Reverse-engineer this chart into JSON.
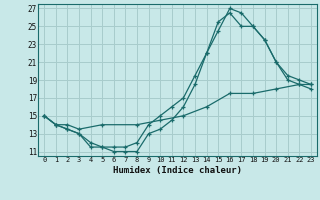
{
  "xlabel": "Humidex (Indice chaleur)",
  "xlim": [
    -0.5,
    23.5
  ],
  "ylim": [
    10.5,
    27.5
  ],
  "xticks": [
    0,
    1,
    2,
    3,
    4,
    5,
    6,
    7,
    8,
    9,
    10,
    11,
    12,
    13,
    14,
    15,
    16,
    17,
    18,
    19,
    20,
    21,
    22,
    23
  ],
  "yticks": [
    11,
    13,
    15,
    17,
    19,
    21,
    23,
    25,
    27
  ],
  "bg_color": "#c8e8e8",
  "grid_color": "#a8cccc",
  "line_color": "#1a6b6b",
  "line1_x": [
    0,
    1,
    2,
    3,
    4,
    5,
    6,
    7,
    8,
    9,
    10,
    11,
    12,
    13,
    14,
    15,
    16,
    17,
    18,
    19,
    20,
    21,
    22,
    23
  ],
  "line1_y": [
    15,
    14,
    13.5,
    13,
    11.5,
    11.5,
    11,
    11,
    11,
    13,
    13.5,
    14.5,
    16,
    18.5,
    22,
    24.5,
    27,
    26.5,
    25,
    23.5,
    21,
    19,
    18.5,
    18
  ],
  "line2_x": [
    0,
    1,
    2,
    3,
    4,
    5,
    6,
    7,
    8,
    9,
    10,
    11,
    12,
    13,
    14,
    15,
    16,
    17,
    18,
    19,
    20,
    21,
    22,
    23
  ],
  "line2_y": [
    15,
    14,
    13.5,
    13,
    12,
    11.5,
    11.5,
    11.5,
    12,
    14,
    15,
    16,
    17,
    19.5,
    22,
    25.5,
    26.5,
    25,
    25,
    23.5,
    21,
    19.5,
    19,
    18.5
  ],
  "line3_x": [
    0,
    1,
    2,
    3,
    5,
    8,
    10,
    12,
    14,
    16,
    18,
    20,
    22,
    23
  ],
  "line3_y": [
    15,
    14,
    14,
    13.5,
    14,
    14,
    14.5,
    15,
    16,
    17.5,
    17.5,
    18,
    18.5,
    18.5
  ]
}
